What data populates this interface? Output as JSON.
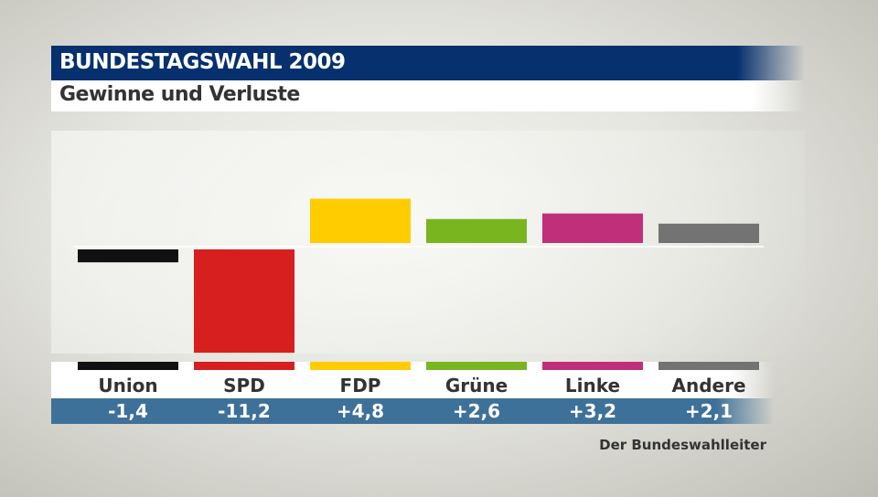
{
  "header": {
    "title": "BUNDESTAGSWAHL 2009",
    "subtitle": "Gewinne und Verluste"
  },
  "source": "Der Bundeswahlleiter",
  "chart_data": {
    "type": "bar",
    "title": "BUNDESTAGSWAHL 2009",
    "subtitle": "Gewinne und Verluste",
    "categories": [
      "Union",
      "SPD",
      "FDP",
      "Grüne",
      "Linke",
      "Andere"
    ],
    "values": [
      -1.4,
      -11.2,
      4.8,
      2.6,
      3.2,
      2.1
    ],
    "value_labels": [
      "-1,4",
      "-11,2",
      "+4,8",
      "+2,6",
      "+3,2",
      "+2,1"
    ],
    "colors": [
      "#111111",
      "#d71f1f",
      "#ffcc00",
      "#78b51f",
      "#c0307a",
      "#737373"
    ],
    "grid": false,
    "legend": "none"
  }
}
